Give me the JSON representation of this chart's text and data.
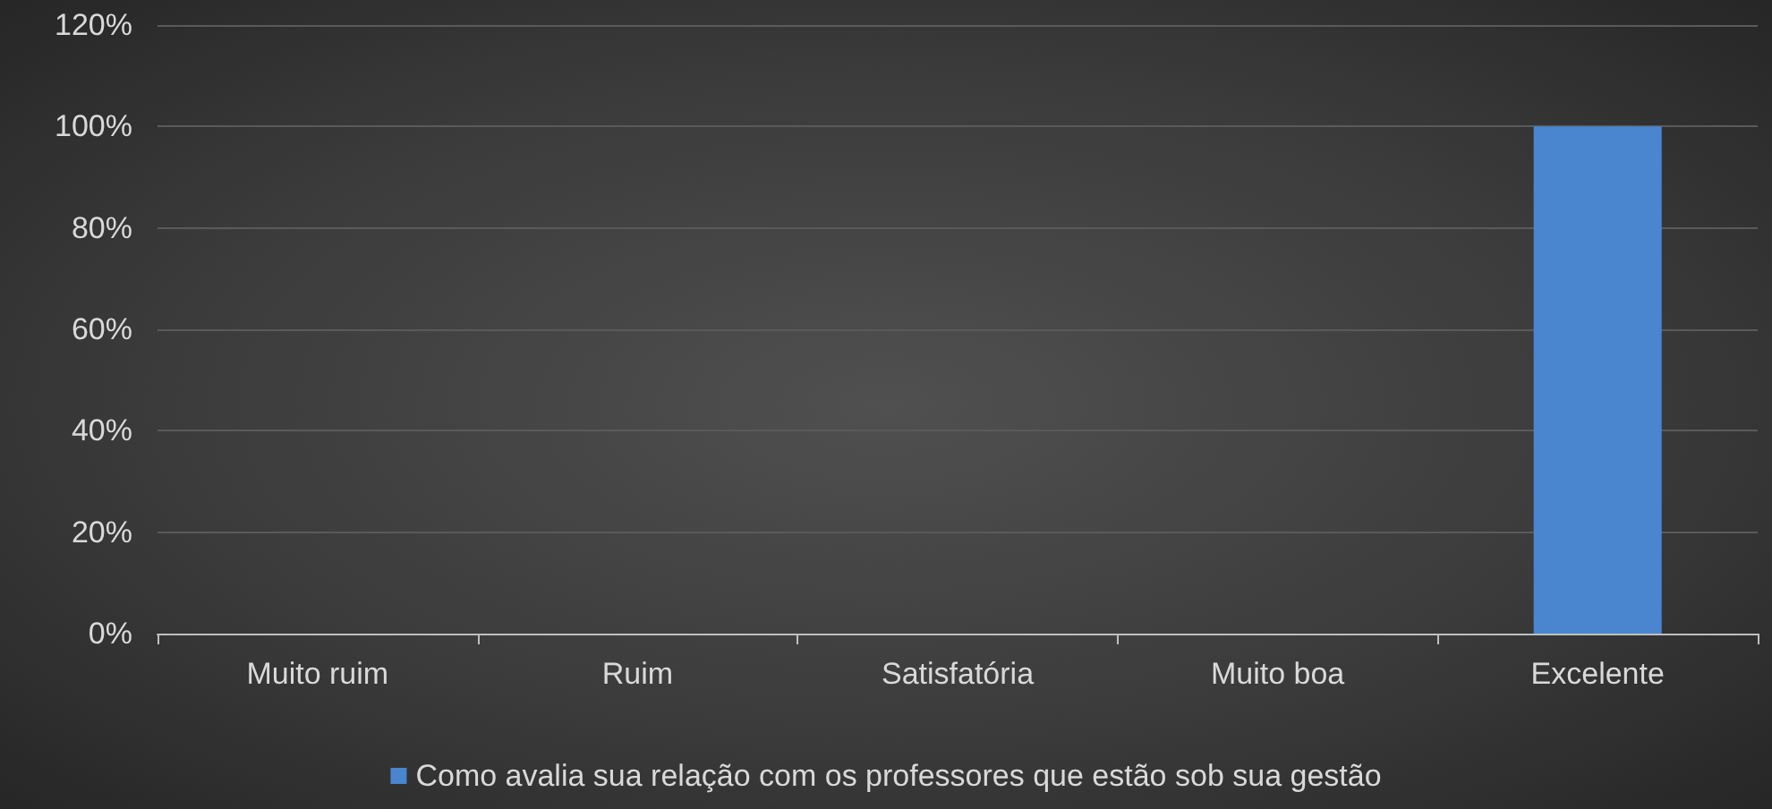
{
  "chart_data": {
    "type": "bar",
    "categories": [
      "Muito ruim",
      "Ruim",
      "Satisfatória",
      "Muito boa",
      "Excelente"
    ],
    "series": [
      {
        "name": "Como avalia sua relação com os professores que estão sob sua gestão",
        "color": "#4a86d0",
        "values": [
          0,
          0,
          0,
          0,
          100
        ]
      }
    ],
    "ylim": [
      0,
      120
    ],
    "yticks": [
      {
        "value": 0,
        "label": "0%"
      },
      {
        "value": 20,
        "label": "20%"
      },
      {
        "value": 40,
        "label": "40%"
      },
      {
        "value": 60,
        "label": "60%"
      },
      {
        "value": 80,
        "label": "80%"
      },
      {
        "value": 100,
        "label": "100%"
      },
      {
        "value": 120,
        "label": "120%"
      }
    ],
    "grid": "y",
    "legend": "bottom"
  }
}
